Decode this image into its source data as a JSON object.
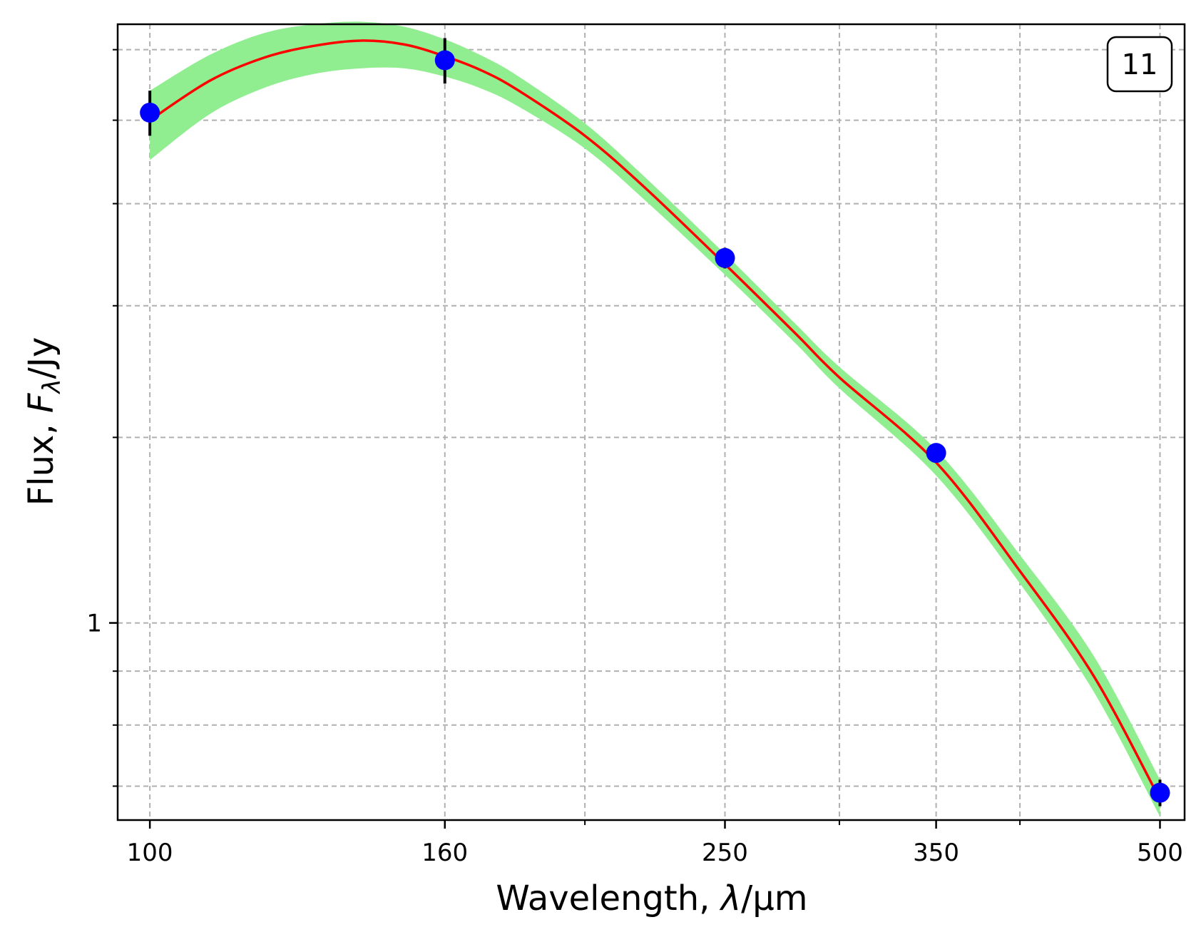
{
  "chart_data": {
    "type": "line",
    "panel_label": "11",
    "xlabel": {
      "prefix": "Wavelength, ",
      "symbol": "λ",
      "suffix": "/μm"
    },
    "ylabel": {
      "prefix": "Flux, ",
      "symbol": "F",
      "subscript": "λ",
      "suffix": "/Jy"
    },
    "x_scale": "log",
    "y_scale": "log",
    "xlim": [
      95,
      520
    ],
    "ylim": [
      0.65,
      3.7
    ],
    "x_ticks": [
      100,
      160,
      250,
      350,
      500
    ],
    "x_tick_labels": [
      "100",
      "160",
      "250",
      "350",
      "500"
    ],
    "x_minor_ticks": [
      200,
      300,
      400
    ],
    "y_ticks": [
      1
    ],
    "y_tick_labels": [
      "1"
    ],
    "y_minor_ticks": [
      0.7,
      0.8,
      0.9,
      1.5,
      2,
      2.5,
      3,
      3.5
    ],
    "grid": true,
    "series": [
      {
        "kind": "points",
        "color": "#0000ff",
        "x": [
          100,
          160,
          250,
          350,
          500
        ],
        "y": [
          3.05,
          3.42,
          2.22,
          1.45,
          0.69
        ],
        "yerr": [
          0.15,
          0.17,
          0.05,
          0.03,
          0.02
        ]
      },
      {
        "kind": "fit",
        "color": "#ff0000",
        "x": [
          100,
          110,
          120,
          130,
          140,
          150,
          160,
          170,
          180,
          200,
          220,
          250,
          280,
          300,
          350,
          400,
          450,
          500
        ],
        "y": [
          3.0,
          3.27,
          3.44,
          3.53,
          3.57,
          3.54,
          3.45,
          3.34,
          3.2,
          2.9,
          2.59,
          2.19,
          1.88,
          1.71,
          1.42,
          1.12,
          0.89,
          0.68
        ]
      },
      {
        "kind": "band",
        "color": "#90ee90",
        "x": [
          100,
          110,
          120,
          130,
          140,
          150,
          160,
          170,
          180,
          200,
          220,
          250,
          280,
          300,
          350,
          400,
          450,
          500
        ],
        "y_low": [
          2.75,
          3.04,
          3.22,
          3.32,
          3.36,
          3.36,
          3.3,
          3.21,
          3.09,
          2.82,
          2.52,
          2.14,
          1.84,
          1.67,
          1.38,
          1.09,
          0.86,
          0.655
        ],
        "y_high": [
          3.2,
          3.46,
          3.63,
          3.7,
          3.72,
          3.68,
          3.58,
          3.45,
          3.3,
          2.98,
          2.65,
          2.24,
          1.92,
          1.75,
          1.46,
          1.16,
          0.93,
          0.71
        ]
      }
    ]
  }
}
